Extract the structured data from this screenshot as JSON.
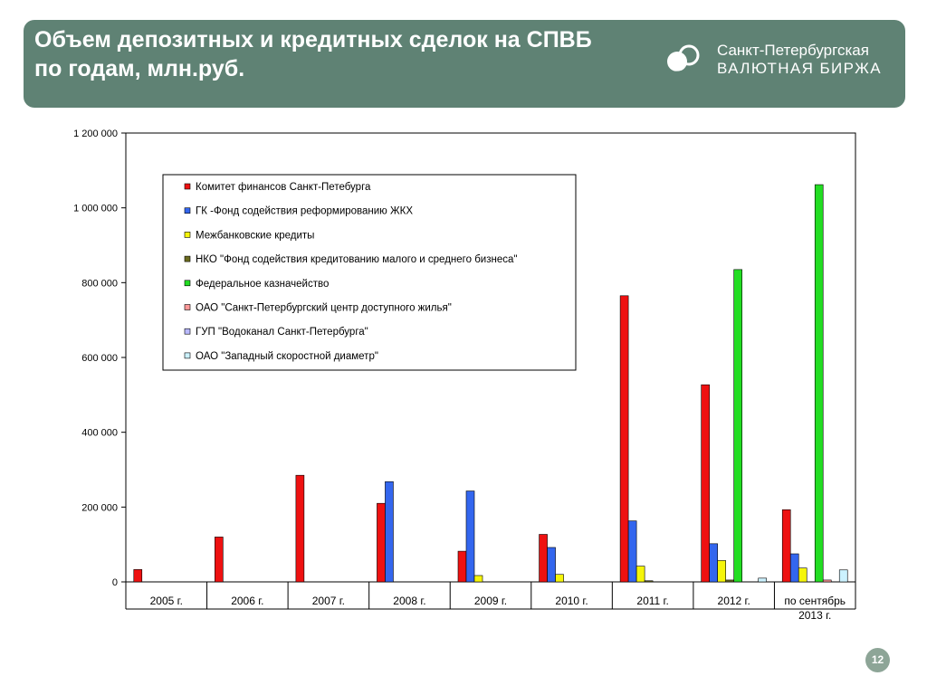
{
  "header": {
    "title": "Объем депозитных и кредитных сделок на СПВБ\n по годам, млн.руб.",
    "logo_line1": "Санкт-Петербургская",
    "logo_line2": "ВАЛЮТНАЯ БИРЖА"
  },
  "page_number": "12",
  "chart_data": {
    "type": "bar",
    "title": "",
    "xlabel": "",
    "ylabel": "",
    "ylim": [
      0,
      1200000
    ],
    "yticks": [
      0,
      200000,
      400000,
      600000,
      800000,
      1000000,
      1200000
    ],
    "ytick_labels": [
      "0",
      "200 000",
      "400 000",
      "600 000",
      "800 000",
      "1 000 000",
      "1 200 000"
    ],
    "grid": false,
    "legend_position": "top-left inside plot",
    "categories": [
      "2005 г.",
      "2006 г.",
      "2007 г.",
      "2008 г.",
      "2009 г.",
      "2010 г.",
      "2011 г.",
      "2012 г.",
      "по сентябрь\n2013 г."
    ],
    "series": [
      {
        "name": "Комитет финансов Санкт-Петебурга",
        "color": "#ee1111",
        "values": [
          33000,
          120000,
          285000,
          210000,
          82000,
          127000,
          765000,
          527000,
          193000
        ]
      },
      {
        "name": "ГК -Фонд содействия реформированию ЖКХ",
        "color": "#3366ee",
        "values": [
          0,
          0,
          0,
          268000,
          243000,
          92000,
          163000,
          102000,
          75000
        ]
      },
      {
        "name": "Межбанковские кредиты",
        "color": "#f5f50a",
        "values": [
          0,
          0,
          0,
          0,
          17000,
          20000,
          42000,
          57000,
          37000
        ]
      },
      {
        "name": "НКО \"Фонд содействия кредитованию малого и среднего бизнеса\"",
        "color": "#6b6b1f",
        "values": [
          0,
          0,
          0,
          0,
          0,
          0,
          3000,
          5000,
          0
        ]
      },
      {
        "name": "Федеральное казначейство",
        "color": "#22dd22",
        "values": [
          0,
          0,
          0,
          0,
          0,
          0,
          0,
          835000,
          1062000
        ]
      },
      {
        "name": "ОАО \"Санкт-Петербургский центр доступного жилья\"",
        "color": "#ff9999",
        "values": [
          0,
          0,
          0,
          0,
          0,
          0,
          0,
          0,
          5000
        ]
      },
      {
        "name": "ГУП \"Водоканал Санкт-Петербурга\"",
        "color": "#b9b9ff",
        "values": [
          0,
          0,
          0,
          0,
          0,
          0,
          0,
          0,
          0
        ]
      },
      {
        "name": "ОАО \"Западный скоростной диаметр\"",
        "color": "#ccf2ff",
        "values": [
          0,
          0,
          0,
          0,
          0,
          0,
          0,
          10000,
          32000
        ]
      }
    ]
  }
}
